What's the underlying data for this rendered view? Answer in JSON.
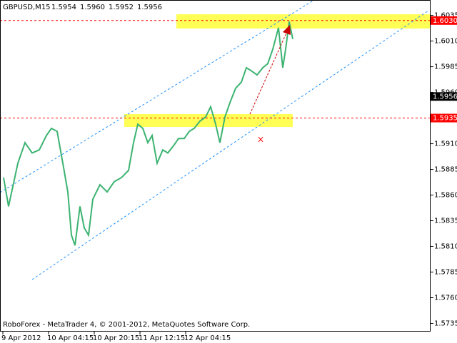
{
  "chart_data": {
    "type": "line",
    "title": "GBPUSD,M15",
    "ohlc": [
      "1.5954",
      "1.5960",
      "1.5952",
      "1.5956"
    ],
    "footer": "RoboForex - MetaTrader 4, © 2001-2012, MetaQuotes Software Corp.",
    "series": [
      {
        "name": "GBPUSD",
        "color": "#3cb371",
        "x": [
          5,
          12,
          25,
          35,
          45,
          55,
          65,
          72,
          80,
          88,
          95,
          100,
          105,
          112,
          118,
          124,
          130,
          140,
          150,
          160,
          170,
          180,
          187,
          193,
          200,
          207,
          213,
          220,
          228,
          235,
          243,
          250,
          258,
          265,
          272,
          280,
          288,
          295,
          302,
          308,
          315,
          322,
          330,
          338,
          345,
          352,
          360,
          368,
          375,
          382,
          390,
          396,
          400,
          405,
          410
        ],
        "values": [
          1.5877,
          1.5849,
          1.5891,
          1.5911,
          1.5901,
          1.5904,
          1.5918,
          1.5925,
          1.5922,
          1.5891,
          1.5863,
          1.5821,
          1.5811,
          1.5849,
          1.5828,
          1.5821,
          1.5856,
          1.587,
          1.5863,
          1.5873,
          1.5877,
          1.5884,
          1.5911,
          1.5929,
          1.5925,
          1.5911,
          1.5918,
          1.5891,
          1.5904,
          1.5901,
          1.5908,
          1.5915,
          1.5915,
          1.5922,
          1.5925,
          1.5932,
          1.5936,
          1.5946,
          1.5929,
          1.5911,
          1.5936,
          1.595,
          1.5964,
          1.597,
          1.5984,
          1.5981,
          1.5977,
          1.5984,
          1.5988,
          1.6002,
          1.6023,
          1.5984,
          1.6002,
          1.6029,
          1.6012
        ]
      }
    ],
    "xlim": [
      0,
      603
    ],
    "xticks": [
      {
        "value": 4,
        "label": "9 Apr 2012"
      },
      {
        "value": 68,
        "label": "10 Apr 04:15"
      },
      {
        "value": 132,
        "label": "10 Apr 20:15"
      },
      {
        "value": 196,
        "label": "11 Apr 12:15"
      },
      {
        "value": 260,
        "label": "12 Apr 04:15"
      }
    ],
    "ylim": [
      1.5727,
      1.605
    ],
    "yticks": [
      1.6035,
      {
        "value": 1.601,
        "label": "1.6010"
      },
      1.5985,
      {
        "value": 1.596,
        "label": "1.5960"
      },
      1.5935,
      {
        "value": 1.591,
        "label": "1.5910"
      },
      1.5885,
      {
        "value": 1.586,
        "label": "1.5860"
      },
      1.5835,
      {
        "value": 1.581,
        "label": "1.5810"
      },
      1.5785,
      {
        "value": 1.576,
        "label": "1.5760"
      },
      1.5735
    ],
    "levels": [
      {
        "value": 1.603,
        "label": "1.6030",
        "color": "#ff0000"
      },
      {
        "value": 1.5935,
        "label": "1.5935",
        "color": "#ff0000"
      }
    ],
    "current": {
      "value": 1.5956,
      "label": "1.5956"
    }
  }
}
